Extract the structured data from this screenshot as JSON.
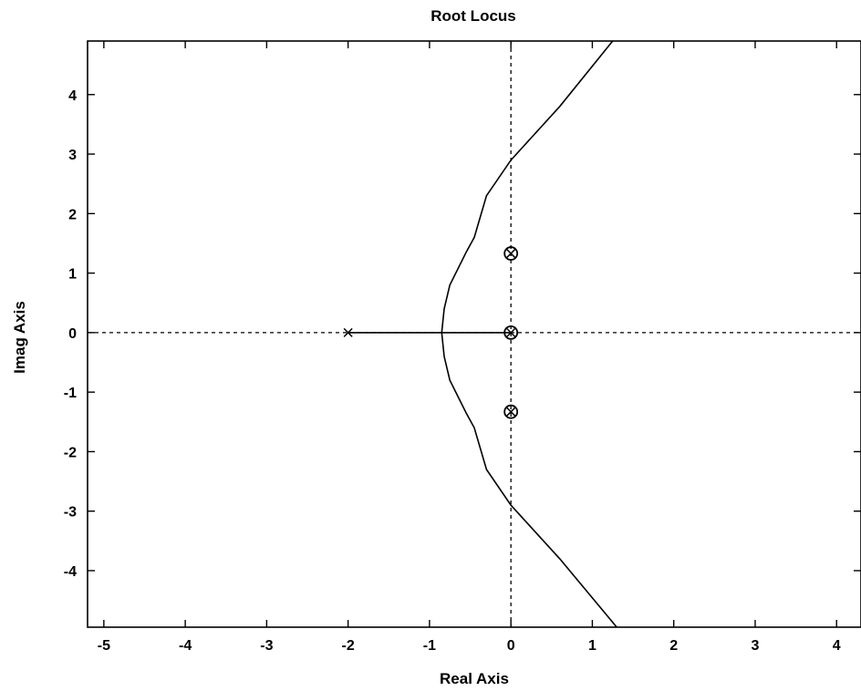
{
  "chart_data": {
    "type": "scatter",
    "title": "Root Locus",
    "xlabel": "Real Axis",
    "ylabel": "Imag Axis",
    "xlim": [
      -5.2,
      4.3
    ],
    "ylim": [
      -4.95,
      4.9
    ],
    "xticks": [
      -5,
      -4,
      -3,
      -2,
      -1,
      0,
      1,
      2,
      3,
      4
    ],
    "yticks": [
      -4,
      -3,
      -2,
      -1,
      0,
      1,
      2,
      3,
      4
    ],
    "grid": false,
    "zero_lines": "dashed",
    "poles": [
      {
        "re": -2,
        "im": 0
      },
      {
        "re": 0,
        "im": 0
      },
      {
        "re": 0,
        "im": 1.33
      },
      {
        "re": 0,
        "im": -1.33
      }
    ],
    "zeros": [
      {
        "re": 0,
        "im": 0
      },
      {
        "re": 0,
        "im": 1.33
      },
      {
        "re": 0,
        "im": -1.33
      }
    ],
    "series": [
      {
        "values_desc": "real-axis locus segment",
        "x": [
          -2,
          0
        ],
        "y": [
          0,
          0
        ]
      },
      {
        "values_desc": "upper branch",
        "x": [
          1.25,
          0.6,
          0.0,
          -0.3,
          -0.45,
          -0.55,
          -0.75,
          -0.82,
          -0.85
        ],
        "y": [
          4.9,
          3.8,
          2.9,
          2.3,
          1.6,
          1.35,
          0.8,
          0.4,
          0.0
        ]
      },
      {
        "values_desc": "lower branch",
        "x": [
          -0.85,
          -0.82,
          -0.75,
          -0.55,
          -0.45,
          -0.3,
          0.0,
          0.6,
          1.3
        ],
        "y": [
          0.0,
          -0.4,
          -0.8,
          -1.35,
          -1.6,
          -2.3,
          -2.9,
          -3.8,
          -4.95
        ]
      }
    ]
  }
}
